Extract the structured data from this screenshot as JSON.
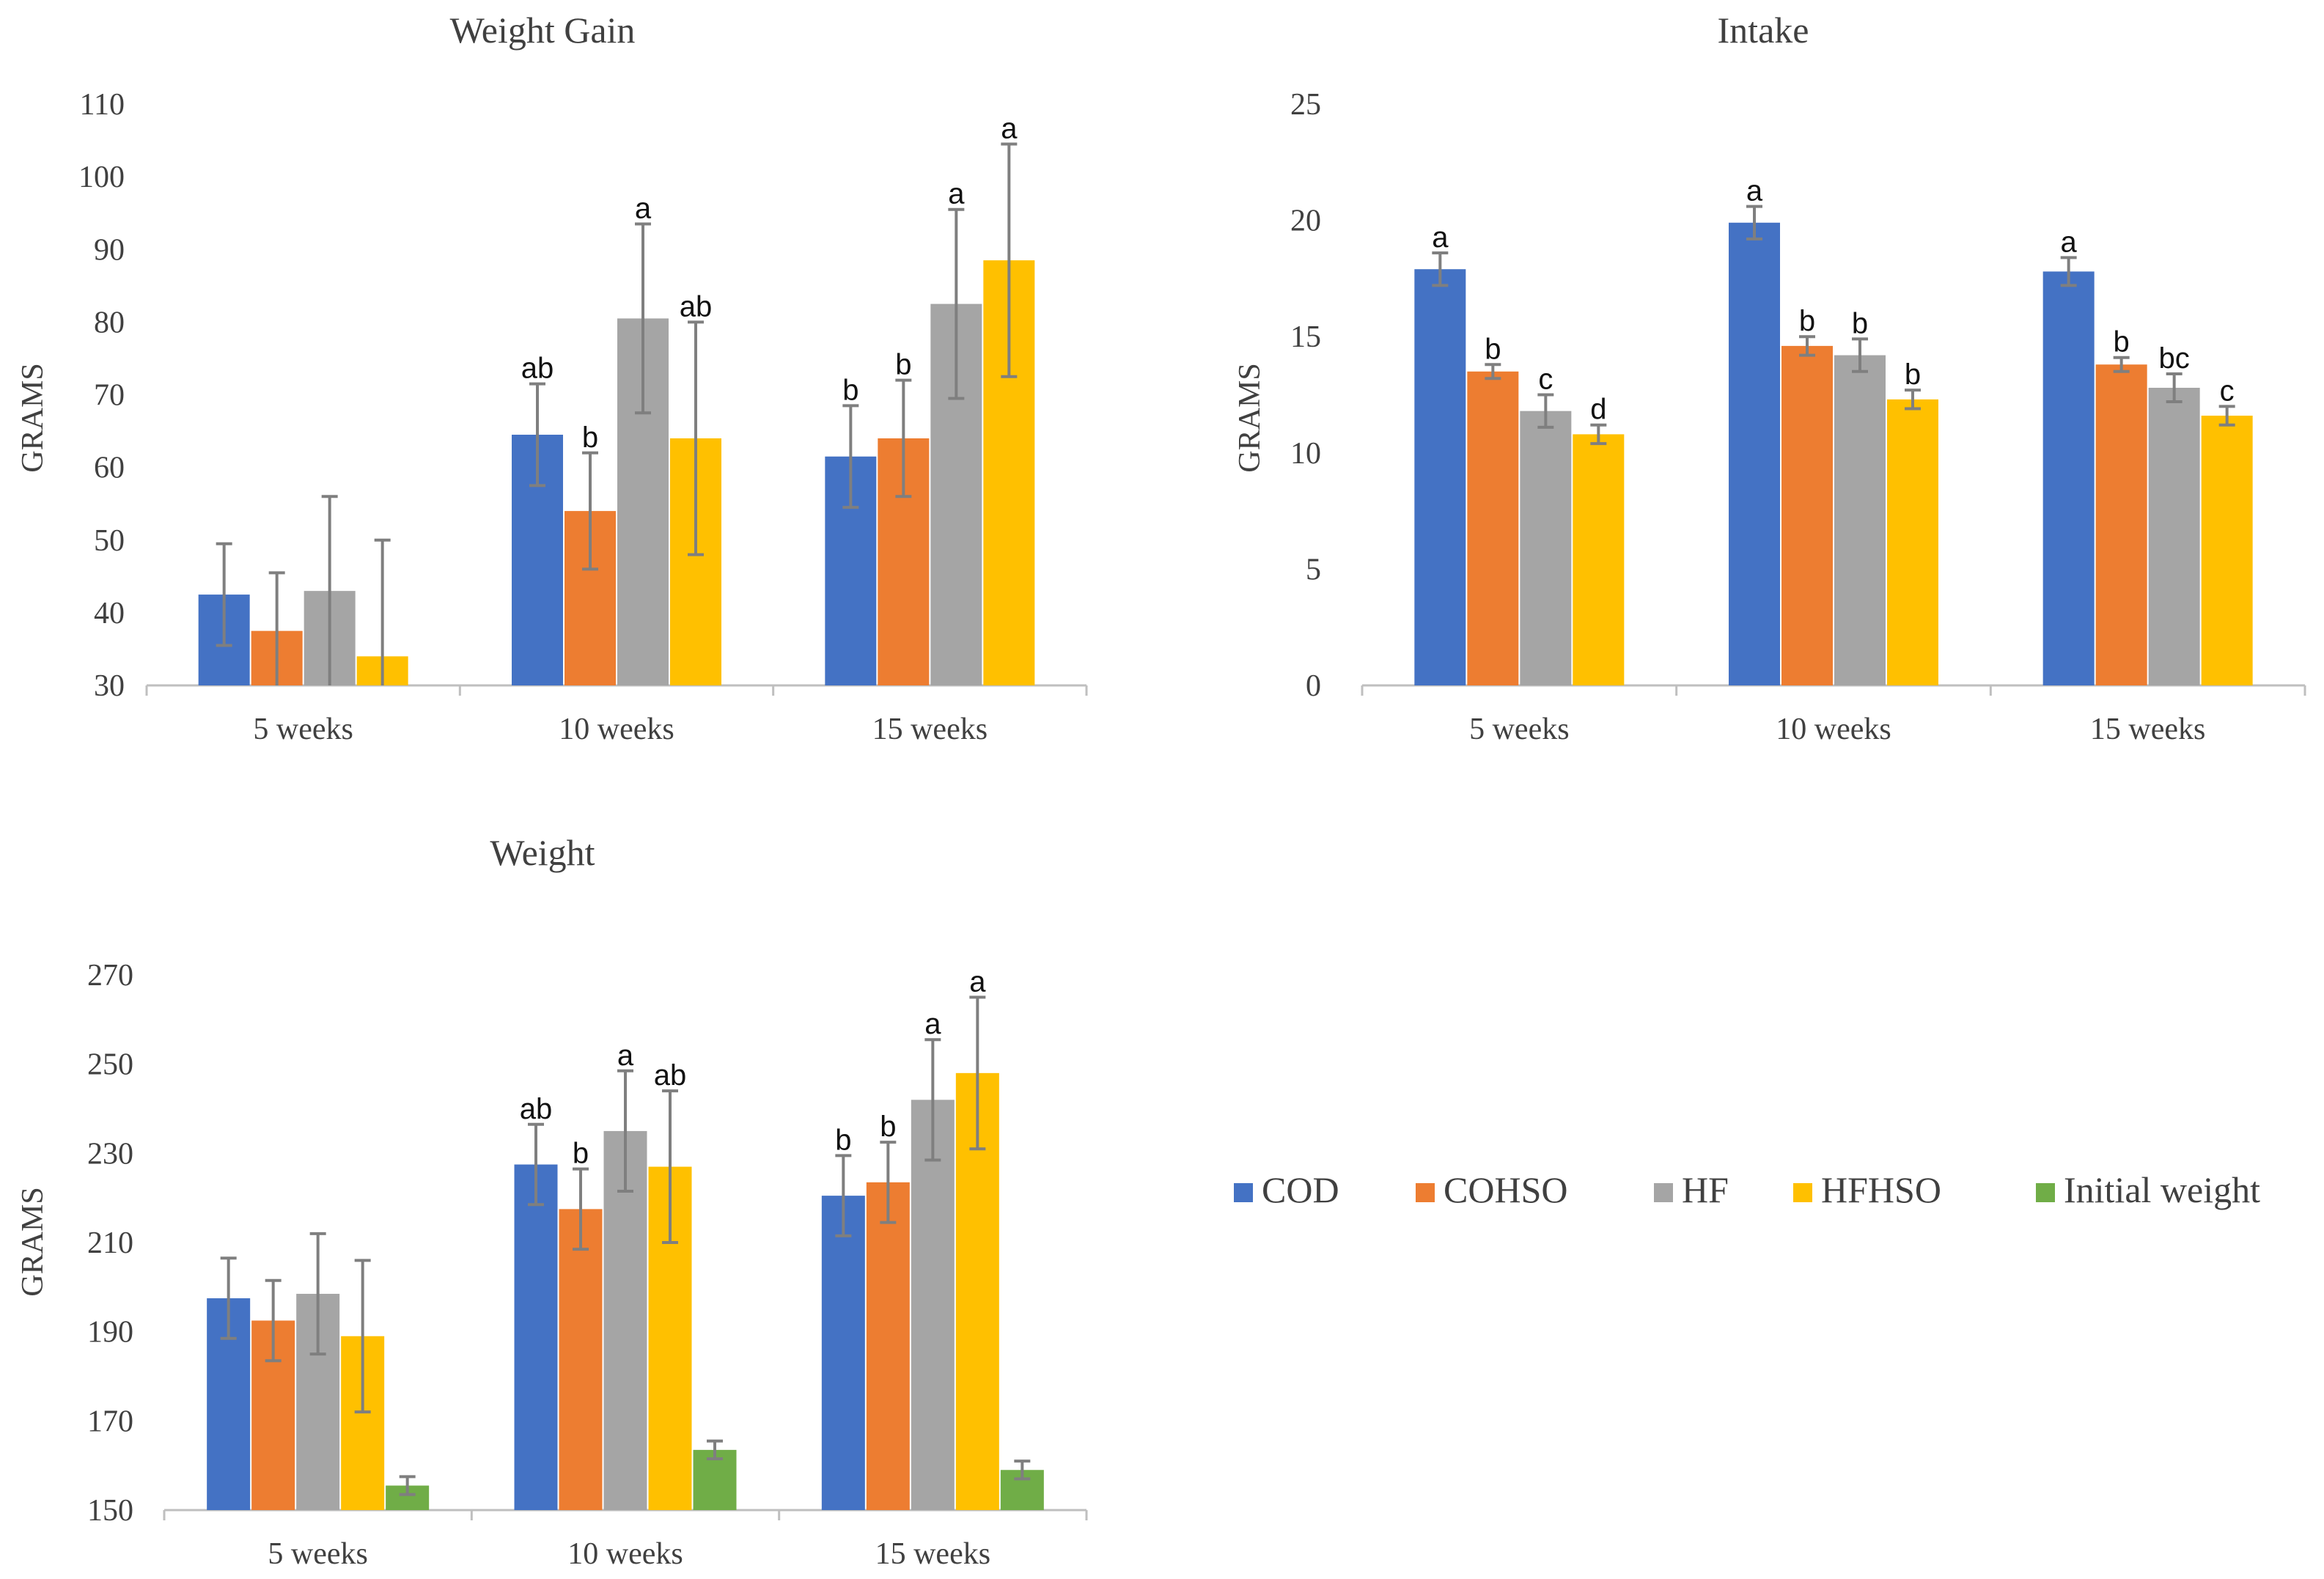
{
  "colors": {
    "COD": "#4472C4",
    "COHSO": "#ED7D31",
    "HF": "#A5A5A5",
    "HFHSO": "#FFC000",
    "Initial weight": "#70AD47",
    "axis": "#BFBFBF",
    "error": "#7F7F7F"
  },
  "legend": {
    "items": [
      "COD",
      "COHSO",
      "HF",
      "HFHSO",
      "Initial weight"
    ]
  },
  "chart_data": [
    {
      "id": "weight-gain",
      "type": "bar",
      "title": "Weight  Gain",
      "ylabel": "GRAMS",
      "xlabel": "",
      "categories": [
        "5 weeks",
        "10 weeks",
        "15 weeks"
      ],
      "ylim": [
        30,
        110
      ],
      "yticks": [
        30,
        40,
        50,
        60,
        70,
        80,
        90,
        100,
        110
      ],
      "series": [
        {
          "name": "COD",
          "values": [
            42.5,
            64.5,
            61.5
          ],
          "errors": [
            7,
            7,
            7
          ],
          "labels": [
            "",
            "ab",
            "b"
          ]
        },
        {
          "name": "COHSO",
          "values": [
            37.5,
            54,
            64
          ],
          "errors": [
            8,
            8,
            8
          ],
          "labels": [
            "",
            "b",
            "b"
          ]
        },
        {
          "name": "HF",
          "values": [
            43,
            80.5,
            82.5
          ],
          "errors": [
            13,
            13,
            13
          ],
          "labels": [
            "",
            "a",
            "a"
          ]
        },
        {
          "name": "HFHSO",
          "values": [
            34,
            64,
            88.5
          ],
          "errors": [
            16,
            16,
            16
          ],
          "labels": [
            "",
            "ab",
            "a"
          ]
        }
      ]
    },
    {
      "id": "intake",
      "type": "bar",
      "title": "Intake",
      "ylabel": "GRAMS",
      "xlabel": "",
      "categories": [
        "5 weeks",
        "10 weeks",
        "15 weeks"
      ],
      "ylim": [
        0,
        25
      ],
      "yticks": [
        0,
        5,
        10,
        15,
        20,
        25
      ],
      "series": [
        {
          "name": "COD",
          "values": [
            17.9,
            19.9,
            17.8
          ],
          "errors": [
            0.7,
            0.7,
            0.6
          ],
          "labels": [
            "a",
            "a",
            "a"
          ]
        },
        {
          "name": "COHSO",
          "values": [
            13.5,
            14.6,
            13.8
          ],
          "errors": [
            0.3,
            0.4,
            0.3
          ],
          "labels": [
            "b",
            "b",
            "b"
          ]
        },
        {
          "name": "HF",
          "values": [
            11.8,
            14.2,
            12.8
          ],
          "errors": [
            0.7,
            0.7,
            0.6
          ],
          "labels": [
            "c",
            "b",
            "bc"
          ]
        },
        {
          "name": "HFHSO",
          "values": [
            10.8,
            12.3,
            11.6
          ],
          "errors": [
            0.4,
            0.4,
            0.4
          ],
          "labels": [
            "d",
            "b",
            "c"
          ]
        }
      ]
    },
    {
      "id": "weight",
      "type": "bar",
      "title": "Weight",
      "ylabel": "GRAMS",
      "xlabel": "",
      "categories": [
        "5 weeks",
        "10 weeks",
        "15 weeks"
      ],
      "ylim": [
        150,
        270
      ],
      "yticks": [
        150,
        170,
        190,
        210,
        230,
        250,
        270
      ],
      "series": [
        {
          "name": "COD",
          "values": [
            197.5,
            227.5,
            220.5
          ],
          "errors": [
            9,
            9,
            9
          ],
          "labels": [
            "",
            "ab",
            "b"
          ]
        },
        {
          "name": "COHSO",
          "values": [
            192.5,
            217.5,
            223.5
          ],
          "errors": [
            9,
            9,
            9
          ],
          "labels": [
            "",
            "b",
            "b"
          ]
        },
        {
          "name": "HF",
          "values": [
            198.5,
            235,
            242
          ],
          "errors": [
            13.5,
            13.5,
            13.5
          ],
          "labels": [
            "",
            "a",
            "a"
          ]
        },
        {
          "name": "HFHSO",
          "values": [
            189,
            227,
            248
          ],
          "errors": [
            17,
            17,
            17
          ],
          "labels": [
            "",
            "ab",
            "a"
          ]
        },
        {
          "name": "Initial weight",
          "values": [
            155.5,
            163.5,
            159
          ],
          "errors": [
            2,
            2,
            2
          ],
          "labels": [
            "",
            "",
            ""
          ]
        }
      ]
    }
  ]
}
